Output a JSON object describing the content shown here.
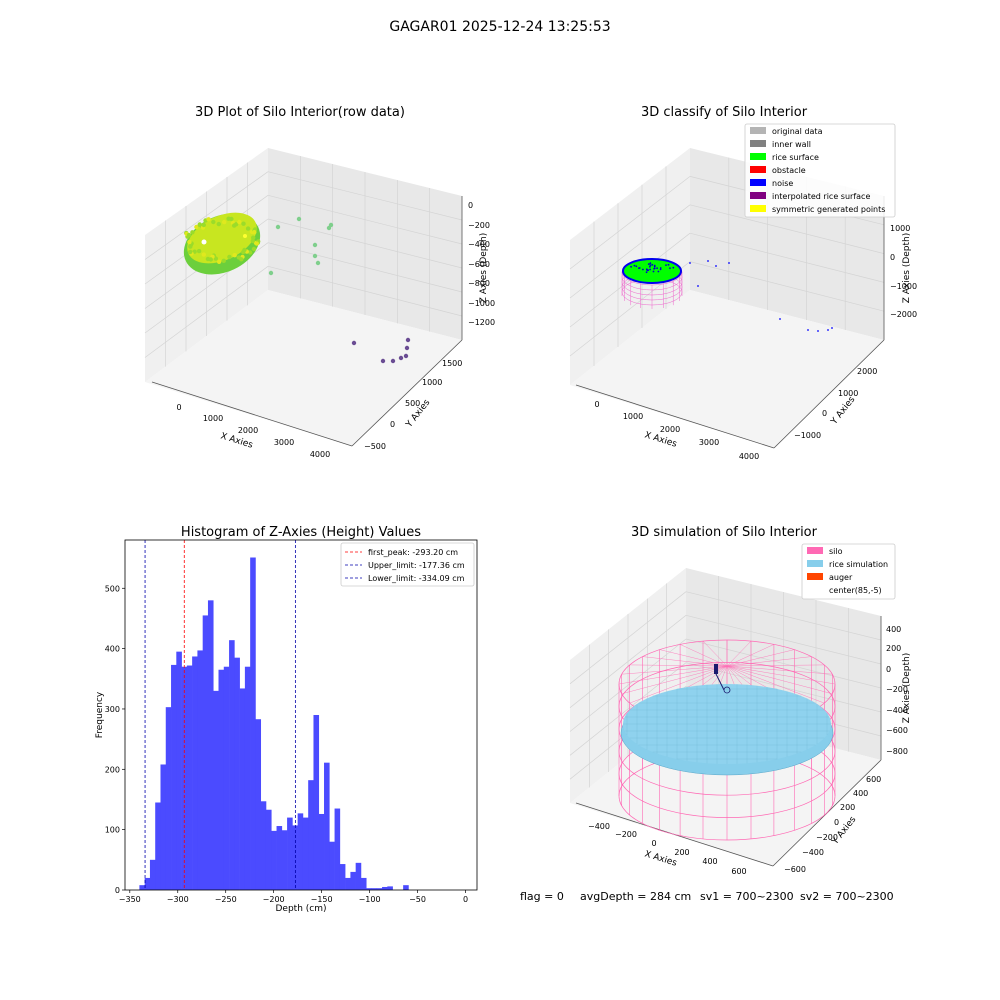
{
  "suptitle": "GAGAR01 2025-12-24 13:25:53",
  "footer": {
    "flag": "flag = 0",
    "avg_depth": "avgDepth = 284 cm",
    "sv1": "sv1 = 700~2300",
    "sv2": "sv2 = 700~2300"
  },
  "chart_data": [
    {
      "type": "scatter",
      "kind": "3d",
      "title": "3D Plot of Silo Interior(row data)",
      "xlabel": "X Axies",
      "ylabel": "Y Axies",
      "zlabel": "Z Axies (Depth)",
      "x_ticks": [
        "0",
        "1000",
        "2000",
        "3000",
        "4000"
      ],
      "y_ticks": [
        "−500",
        "0",
        "500",
        "1000",
        "1500"
      ],
      "z_ticks": [
        "0",
        "−200",
        "−400",
        "−600",
        "−800",
        "−1000",
        "−1200"
      ],
      "xlim": [
        -400,
        4300
      ],
      "ylim": [
        -600,
        1700
      ],
      "zlim": [
        -1350,
        50
      ],
      "grid": true,
      "colormap": "viridis",
      "colors": {
        "cloud_light": "#c8e620",
        "cloud_dark": "#6ccf3c",
        "outlier_green": "#7fcf8c",
        "outlier_purple": "#6a4c93"
      }
    },
    {
      "type": "scatter",
      "kind": "3d",
      "title": "3D classify of Silo Interior",
      "xlabel": "X Axies",
      "ylabel": "Y Axies",
      "zlabel": "Z Axies (Depth)",
      "x_ticks": [
        "0",
        "1000",
        "2000",
        "3000",
        "4000"
      ],
      "y_ticks": [
        "−1000",
        "0",
        "1000",
        "2000"
      ],
      "z_ticks": [
        "1000",
        "0",
        "−1000",
        "−2000"
      ],
      "xlim": [
        -400,
        4300
      ],
      "ylim": [
        -1500,
        2500
      ],
      "zlim": [
        -2500,
        1500
      ],
      "grid": true,
      "legend_position": "top-right",
      "legend": [
        {
          "label": "original data",
          "color": "#b4b4b4"
        },
        {
          "label": "inner wall",
          "color": "#808080"
        },
        {
          "label": "rice surface",
          "color": "#00ff00"
        },
        {
          "label": "obstacle",
          "color": "#ff0000"
        },
        {
          "label": "noise",
          "color": "#0000ff"
        },
        {
          "label": "interpolated rice surface",
          "color": "#800080"
        },
        {
          "label": "symmetric generated points",
          "color": "#ffff00"
        }
      ]
    },
    {
      "type": "bar",
      "kind": "histogram",
      "title": "Histogram of Z-Axies (Height) Values",
      "xlabel": "Depth (cm)",
      "ylabel": "Frequency",
      "xlim": [
        -355,
        12
      ],
      "ylim": [
        0,
        580
      ],
      "x_ticks": [
        -350,
        -300,
        -250,
        -200,
        -150,
        -100,
        -50,
        0
      ],
      "y_ticks": [
        0,
        100,
        200,
        300,
        400,
        500
      ],
      "bin_width": 5.5,
      "bin_start": -340,
      "values": [
        8,
        20,
        50,
        145,
        208,
        303,
        373,
        395,
        370,
        372,
        387,
        397,
        455,
        480,
        330,
        365,
        370,
        414,
        385,
        334,
        370,
        551,
        283,
        147,
        133,
        98,
        106,
        99,
        120,
        107,
        127,
        120,
        182,
        290,
        126,
        211,
        80,
        135,
        43,
        20,
        30,
        45,
        20,
        3,
        3,
        3,
        5,
        6,
        0,
        0,
        8
      ],
      "bar_color": "#4b4bff",
      "grid": false,
      "legend_position": "top-right",
      "lines": [
        {
          "label": "first_peak: -293.20 cm",
          "x": -293.2,
          "color": "#ff0000"
        },
        {
          "label": "Upper_limit: -177.36 cm",
          "x": -177.36,
          "color": "#0000aa"
        },
        {
          "label": "Lower_limit: -334.09 cm",
          "x": -334.09,
          "color": "#0000aa"
        }
      ]
    },
    {
      "type": "scatter",
      "kind": "3d",
      "title": "3D simulation of Silo Interior",
      "xlabel": "X Axies",
      "ylabel": "Y Axies",
      "zlabel": "Z Axies (Depth)",
      "x_ticks": [
        "−400",
        "−200",
        "0",
        "200",
        "400",
        "600"
      ],
      "y_ticks": [
        "−600",
        "−400",
        "−200",
        "0",
        "200",
        "400",
        "600"
      ],
      "z_ticks": [
        "400",
        "200",
        "0",
        "−200",
        "−400",
        "−600",
        "−800"
      ],
      "xlim": [
        -550,
        750
      ],
      "ylim": [
        -700,
        700
      ],
      "zlim": [
        -900,
        450
      ],
      "grid": true,
      "legend_position": "top-right",
      "legend": [
        {
          "label": "silo",
          "color": "#ff69b4"
        },
        {
          "label": "rice simulation",
          "color": "#87ceeb"
        },
        {
          "label": "auger",
          "color": "#ff4500"
        },
        {
          "label": "center(85,-5)",
          "color": "#ffffff"
        }
      ]
    }
  ]
}
